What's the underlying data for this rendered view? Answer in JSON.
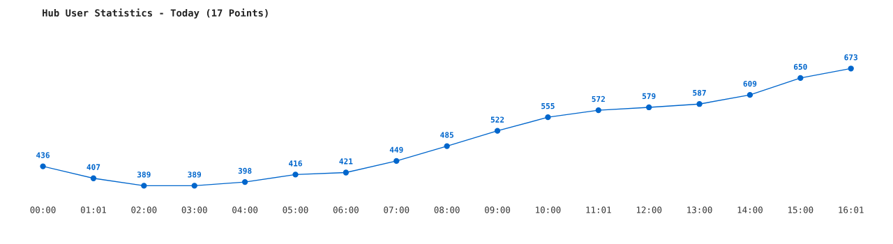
{
  "chart_data": {
    "type": "line",
    "title": "Hub User Statistics - Today (17 Points)",
    "categories": [
      "00:00",
      "01:01",
      "02:00",
      "03:00",
      "04:00",
      "05:00",
      "06:00",
      "07:00",
      "08:00",
      "09:00",
      "10:00",
      "11:01",
      "12:00",
      "13:00",
      "14:00",
      "15:00",
      "16:01"
    ],
    "series": [
      {
        "color": "#0066cc",
        "values": [
          436,
          407,
          389,
          389,
          398,
          416,
          421,
          449,
          485,
          522,
          555,
          572,
          579,
          587,
          609,
          650,
          673
        ]
      }
    ],
    "data_labels": true,
    "marker": "circle",
    "line_style": "solid",
    "tick_labels": "x"
  }
}
